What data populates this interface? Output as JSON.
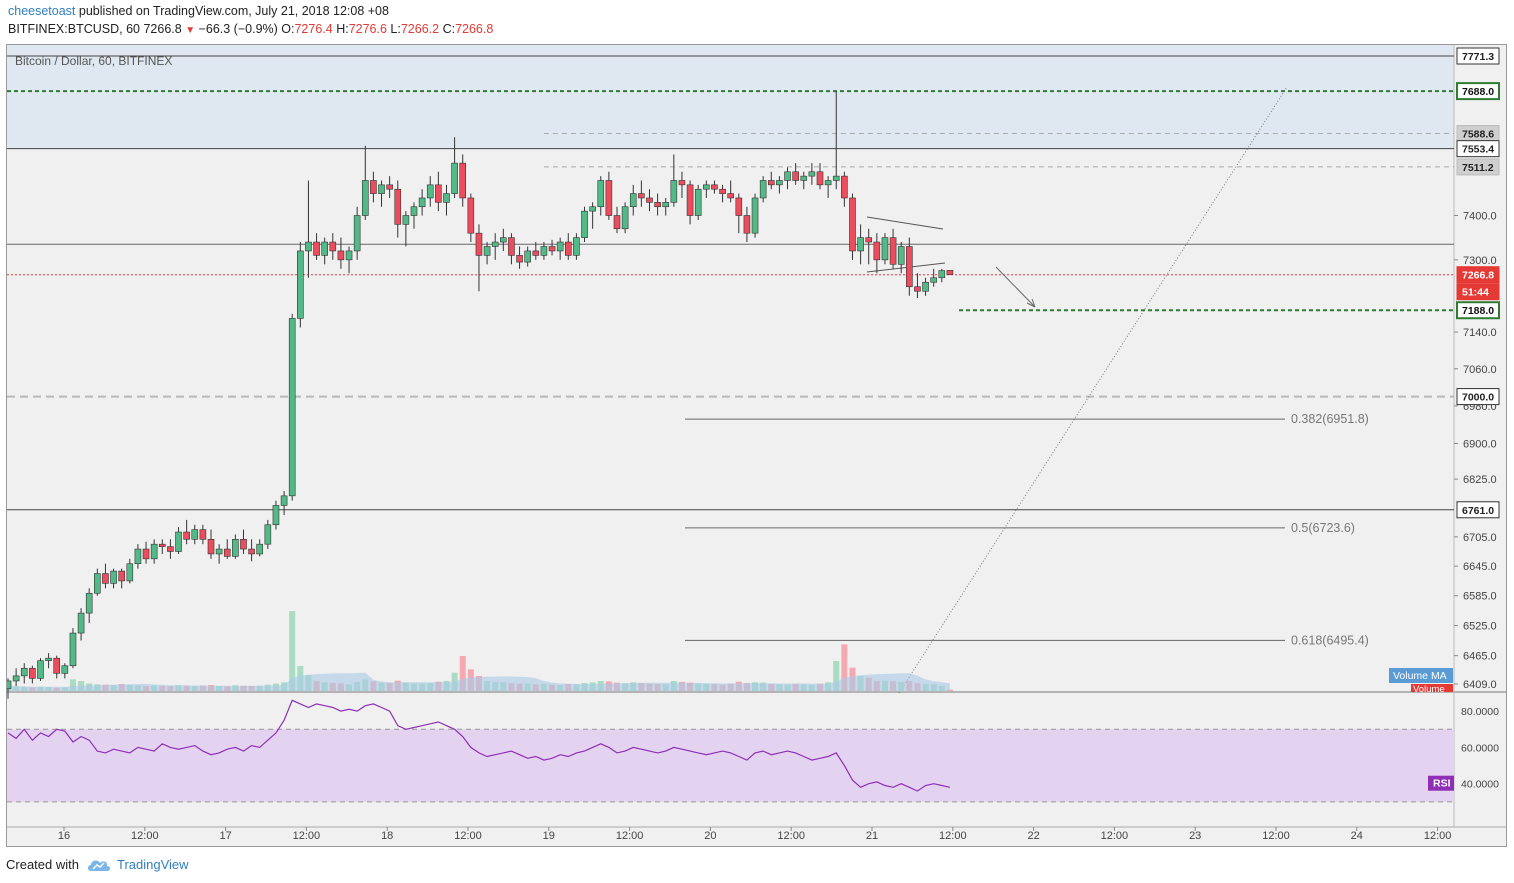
{
  "header": {
    "author": "cheesetoast",
    "published_text": "published on TradingView.com, July 21, 2018 12:08 +08",
    "symbol": "BITFINEX:BTCUSD, 60",
    "last_price": "7266.8",
    "change_icon": "down-triangle-icon",
    "change": "−66.3 (−0.9%)",
    "o_label": "O:",
    "o": "7276.4",
    "h_label": "H:",
    "h": "7276.6",
    "l_label": "L:",
    "l": "7266.2",
    "c_label": "C:",
    "c": "7266.8"
  },
  "chart_title": "Bitcoin / Dollar, 60, BITFINEX",
  "footer": {
    "created_with": "Created with",
    "brand": "TradingView",
    "brand_icon": "tradingview-cloud-icon"
  },
  "colors": {
    "up": "#53b987",
    "down": "#eb4d5c",
    "up_volume": "#a9dcc3",
    "down_volume": "#f4a9b0",
    "rsi": "#8e2fb5",
    "rsi_band": "#e3d3f1",
    "target": "#2e7d32",
    "last_price": "#e53935",
    "volume_ma": "#aac9e6",
    "zone": "#dfe8f0"
  },
  "chart_data": {
    "type": "candlestick",
    "title": "Bitcoin / Dollar, 60, BITFINEX",
    "interval": "60",
    "y_scale": "log",
    "price_axis_ticks": [
      "7400.0",
      "7300.0",
      "7140.0",
      "7060.0",
      "6980.0",
      "6900.0",
      "6825.0",
      "6705.0",
      "6645.0",
      "6585.0",
      "6525.0",
      "6465.0",
      "6409.0"
    ],
    "time_axis_labels": [
      "16",
      "12:00",
      "17",
      "12:00",
      "18",
      "12:00",
      "19",
      "12:00",
      "20",
      "12:00",
      "21",
      "12:00",
      "22",
      "12:00",
      "23",
      "12:00",
      "24",
      "12:00"
    ],
    "price_labels": [
      {
        "value": "7771.3",
        "kind": "level"
      },
      {
        "value": "7688.0",
        "kind": "target"
      },
      {
        "value": "7588.6",
        "kind": "gray"
      },
      {
        "value": "7553.4",
        "kind": "level"
      },
      {
        "value": "7511.2",
        "kind": "gray"
      },
      {
        "value": "7266.8",
        "kind": "last"
      },
      {
        "value": "51:44",
        "kind": "countdown"
      },
      {
        "value": "7188.0",
        "kind": "target"
      },
      {
        "value": "7000.0",
        "kind": "level"
      },
      {
        "value": "6761.0",
        "kind": "level"
      }
    ],
    "fib_levels": [
      {
        "label": "0.382(6951.8)",
        "value": 6951.8
      },
      {
        "label": "0.5(6723.6)",
        "value": 6723.6
      },
      {
        "label": "0.618(6495.4)",
        "value": 6495.4
      }
    ],
    "levels": {
      "resistance_zone": [
        7553.4,
        7771.3
      ],
      "target_high": 7688.0,
      "target_low": 7188.0,
      "round_level": 7000.0,
      "support": 6761.0,
      "mid_line": 7335.0,
      "last_price": 7266.8
    },
    "candles_start_index": 0,
    "candles": [
      [
        6400,
        6420,
        6380,
        6415
      ],
      [
        6415,
        6440,
        6405,
        6425
      ],
      [
        6425,
        6450,
        6410,
        6440
      ],
      [
        6440,
        6445,
        6410,
        6420
      ],
      [
        6420,
        6460,
        6415,
        6455
      ],
      [
        6455,
        6470,
        6440,
        6460
      ],
      [
        6460,
        6465,
        6420,
        6430
      ],
      [
        6430,
        6450,
        6420,
        6445
      ],
      [
        6445,
        6520,
        6440,
        6510
      ],
      [
        6510,
        6560,
        6495,
        6550
      ],
      [
        6550,
        6600,
        6530,
        6590
      ],
      [
        6590,
        6640,
        6585,
        6630
      ],
      [
        6630,
        6650,
        6600,
        6610
      ],
      [
        6610,
        6640,
        6600,
        6635
      ],
      [
        6635,
        6640,
        6600,
        6615
      ],
      [
        6615,
        6660,
        6610,
        6650
      ],
      [
        6650,
        6690,
        6640,
        6680
      ],
      [
        6680,
        6695,
        6650,
        6660
      ],
      [
        6660,
        6700,
        6650,
        6690
      ],
      [
        6690,
        6700,
        6670,
        6685
      ],
      [
        6685,
        6700,
        6660,
        6675
      ],
      [
        6675,
        6725,
        6670,
        6715
      ],
      [
        6715,
        6740,
        6690,
        6700
      ],
      [
        6700,
        6730,
        6690,
        6720
      ],
      [
        6720,
        6730,
        6690,
        6700
      ],
      [
        6700,
        6720,
        6660,
        6670
      ],
      [
        6670,
        6690,
        6650,
        6680
      ],
      [
        6680,
        6700,
        6660,
        6665
      ],
      [
        6665,
        6710,
        6660,
        6700
      ],
      [
        6700,
        6720,
        6670,
        6680
      ],
      [
        6680,
        6700,
        6655,
        6670
      ],
      [
        6670,
        6700,
        6665,
        6690
      ],
      [
        6690,
        6740,
        6680,
        6730
      ],
      [
        6730,
        6780,
        6720,
        6770
      ],
      [
        6770,
        6800,
        6750,
        6790
      ],
      [
        6790,
        7180,
        6780,
        7170
      ],
      [
        7170,
        7340,
        7150,
        7320
      ],
      [
        7320,
        7480,
        7260,
        7340
      ],
      [
        7340,
        7360,
        7300,
        7310
      ],
      [
        7310,
        7350,
        7290,
        7340
      ],
      [
        7340,
        7360,
        7300,
        7320
      ],
      [
        7320,
        7350,
        7280,
        7300
      ],
      [
        7300,
        7330,
        7270,
        7320
      ],
      [
        7320,
        7420,
        7300,
        7400
      ],
      [
        7400,
        7560,
        7390,
        7480
      ],
      [
        7480,
        7500,
        7430,
        7450
      ],
      [
        7450,
        7480,
        7420,
        7470
      ],
      [
        7470,
        7490,
        7440,
        7460
      ],
      [
        7460,
        7480,
        7350,
        7380
      ],
      [
        7380,
        7410,
        7330,
        7400
      ],
      [
        7400,
        7430,
        7370,
        7420
      ],
      [
        7420,
        7460,
        7400,
        7440
      ],
      [
        7440,
        7490,
        7420,
        7470
      ],
      [
        7470,
        7500,
        7410,
        7430
      ],
      [
        7430,
        7470,
        7400,
        7450
      ],
      [
        7450,
        7580,
        7440,
        7520
      ],
      [
        7520,
        7540,
        7420,
        7440
      ],
      [
        7440,
        7450,
        7340,
        7360
      ],
      [
        7360,
        7380,
        7230,
        7310
      ],
      [
        7310,
        7340,
        7290,
        7330
      ],
      [
        7330,
        7360,
        7300,
        7340
      ],
      [
        7340,
        7370,
        7320,
        7350
      ],
      [
        7350,
        7360,
        7290,
        7310
      ],
      [
        7310,
        7330,
        7280,
        7295
      ],
      [
        7295,
        7330,
        7285,
        7320
      ],
      [
        7320,
        7340,
        7300,
        7310
      ],
      [
        7310,
        7340,
        7300,
        7330
      ],
      [
        7330,
        7345,
        7310,
        7320
      ],
      [
        7320,
        7350,
        7300,
        7340
      ],
      [
        7340,
        7360,
        7300,
        7310
      ],
      [
        7310,
        7360,
        7300,
        7350
      ],
      [
        7350,
        7420,
        7340,
        7410
      ],
      [
        7410,
        7430,
        7370,
        7420
      ],
      [
        7420,
        7490,
        7400,
        7480
      ],
      [
        7480,
        7500,
        7390,
        7400
      ],
      [
        7400,
        7420,
        7360,
        7370
      ],
      [
        7370,
        7430,
        7360,
        7420
      ],
      [
        7420,
        7470,
        7400,
        7450
      ],
      [
        7450,
        7480,
        7420,
        7440
      ],
      [
        7440,
        7460,
        7410,
        7430
      ],
      [
        7430,
        7450,
        7400,
        7420
      ],
      [
        7420,
        7440,
        7400,
        7430
      ],
      [
        7430,
        7540,
        7420,
        7480
      ],
      [
        7480,
        7500,
        7440,
        7470
      ],
      [
        7470,
        7480,
        7380,
        7400
      ],
      [
        7400,
        7470,
        7390,
        7460
      ],
      [
        7460,
        7480,
        7440,
        7470
      ],
      [
        7470,
        7480,
        7450,
        7460
      ],
      [
        7460,
        7470,
        7430,
        7450
      ],
      [
        7450,
        7480,
        7430,
        7440
      ],
      [
        7440,
        7450,
        7360,
        7400
      ],
      [
        7400,
        7420,
        7340,
        7360
      ],
      [
        7360,
        7450,
        7350,
        7440
      ],
      [
        7440,
        7490,
        7430,
        7480
      ],
      [
        7480,
        7500,
        7460,
        7470
      ],
      [
        7470,
        7490,
        7450,
        7480
      ],
      [
        7480,
        7510,
        7460,
        7500
      ],
      [
        7500,
        7520,
        7470,
        7480
      ],
      [
        7480,
        7500,
        7460,
        7490
      ],
      [
        7490,
        7520,
        7470,
        7500
      ],
      [
        7500,
        7520,
        7460,
        7470
      ],
      [
        7470,
        7490,
        7440,
        7480
      ],
      [
        7480,
        7688,
        7460,
        7490
      ],
      [
        7490,
        7500,
        7420,
        7440
      ],
      [
        7440,
        7450,
        7300,
        7320
      ],
      [
        7320,
        7380,
        7290,
        7350
      ],
      [
        7350,
        7370,
        7290,
        7340
      ],
      [
        7340,
        7360,
        7270,
        7300
      ],
      [
        7300,
        7360,
        7290,
        7350
      ],
      [
        7350,
        7370,
        7280,
        7290
      ],
      [
        7290,
        7340,
        7270,
        7330
      ],
      [
        7330,
        7350,
        7220,
        7240
      ],
      [
        7240,
        7270,
        7215,
        7230
      ],
      [
        7230,
        7260,
        7220,
        7250
      ],
      [
        7250,
        7280,
        7240,
        7260
      ],
      [
        7260,
        7280,
        7250,
        7276
      ],
      [
        7276.4,
        7276.6,
        7266.2,
        7266.8
      ]
    ],
    "volume": [
      30,
      28,
      25,
      22,
      26,
      24,
      20,
      22,
      70,
      60,
      45,
      40,
      38,
      35,
      42,
      36,
      33,
      30,
      34,
      31,
      29,
      35,
      32,
      30,
      33,
      36,
      30,
      28,
      34,
      31,
      30,
      32,
      38,
      44,
      52,
      480,
      150,
      95,
      60,
      52,
      48,
      45,
      40,
      55,
      70,
      58,
      50,
      48,
      62,
      50,
      45,
      44,
      48,
      56,
      60,
      110,
      210,
      130,
      90,
      60,
      55,
      52,
      46,
      44,
      45,
      40,
      42,
      38,
      36,
      42,
      40,
      48,
      52,
      60,
      58,
      50,
      46,
      52,
      48,
      44,
      42,
      40,
      60,
      55,
      50,
      45,
      42,
      40,
      38,
      44,
      56,
      48,
      52,
      50,
      42,
      40,
      38,
      42,
      40,
      38,
      44,
      52,
      180,
      280,
      140,
      90,
      80,
      60,
      62,
      58,
      55,
      60,
      48,
      42,
      40,
      30,
      8
    ],
    "volume_ma_label": "Volume MA",
    "volume_label": "Volume",
    "rsi": {
      "label": "RSI",
      "axis": [
        "80.0000",
        "60.0000",
        "40.0000"
      ],
      "overbought": 70,
      "oversold": 30,
      "values": [
        68,
        65,
        70,
        64,
        68,
        66,
        70,
        69,
        63,
        66,
        64,
        58,
        57,
        59,
        58,
        57,
        60,
        59,
        58,
        62,
        60,
        59,
        60,
        61,
        58,
        56,
        57,
        59,
        60,
        58,
        61,
        60,
        64,
        68,
        75,
        86,
        84,
        82,
        84,
        83,
        82,
        80,
        81,
        80,
        83,
        84,
        82,
        80,
        72,
        70,
        71,
        72,
        73,
        74,
        72,
        70,
        66,
        60,
        57,
        55,
        56,
        57,
        58,
        56,
        54,
        55,
        53,
        54,
        56,
        55,
        57,
        58,
        60,
        62,
        60,
        57,
        58,
        60,
        59,
        58,
        57,
        58,
        60,
        59,
        58,
        57,
        56,
        57,
        58,
        57,
        55,
        53,
        57,
        58,
        56,
        57,
        58,
        57,
        55,
        53,
        54,
        55,
        57,
        50,
        42,
        38,
        40,
        41,
        39,
        38,
        40,
        38,
        36,
        39,
        40,
        39,
        38
      ]
    }
  }
}
